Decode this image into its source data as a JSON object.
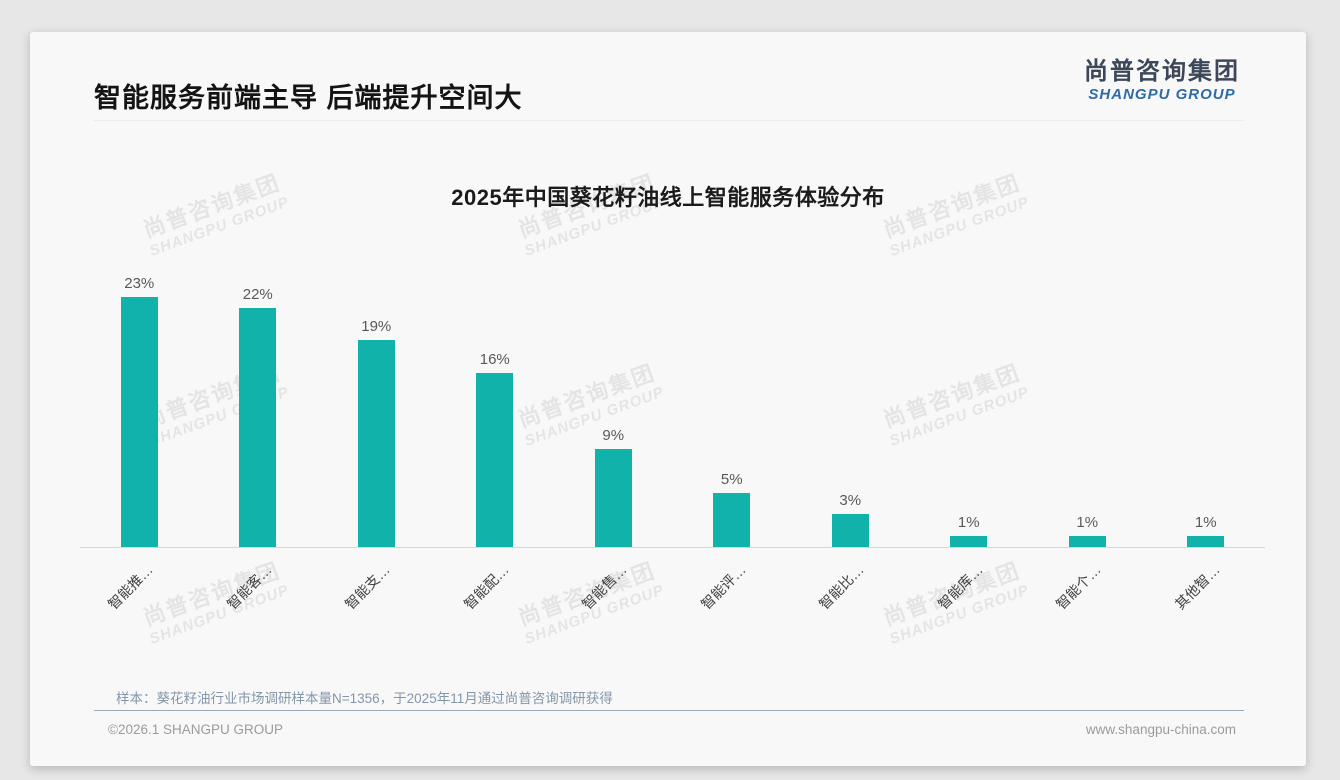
{
  "header": {
    "title": "智能服务前端主导 后端提升空间大"
  },
  "logo": {
    "cn": "尚普咨询集团",
    "en": "SHANGPU GROUP"
  },
  "chart_data": {
    "type": "bar",
    "title": "2025年中国葵花籽油线上智能服务体验分布",
    "categories": [
      "智能推…",
      "智能客…",
      "智能支…",
      "智能配…",
      "智能售…",
      "智能评…",
      "智能比…",
      "智能库…",
      "智能个…",
      "其他智…"
    ],
    "values": [
      23,
      22,
      19,
      16,
      9,
      5,
      3,
      1,
      1,
      1
    ],
    "value_labels": [
      "23%",
      "22%",
      "19%",
      "16%",
      "9%",
      "5%",
      "3%",
      "1%",
      "1%",
      "1%"
    ],
    "ylim": [
      0,
      25
    ],
    "xlabel": "",
    "ylabel": "",
    "grid": false,
    "legend": false,
    "label_rotation": 45,
    "bar_color": "#10b2aa"
  },
  "footnote": {
    "text": "样本：葵花籽油行业市场调研样本量N=1356，于2025年11月通过尚普咨询调研获得"
  },
  "footer": {
    "copyright": "©2026.1 SHANGPU GROUP",
    "url": "www.shangpu-china.com"
  },
  "watermark": {
    "line1": "尚普咨询集团",
    "line2": "SHANGPU GROUP"
  },
  "colors": {
    "bar": "#10b2aa",
    "logo_blue": "#2e6ba8",
    "note_gray_blue": "#8496aa"
  }
}
